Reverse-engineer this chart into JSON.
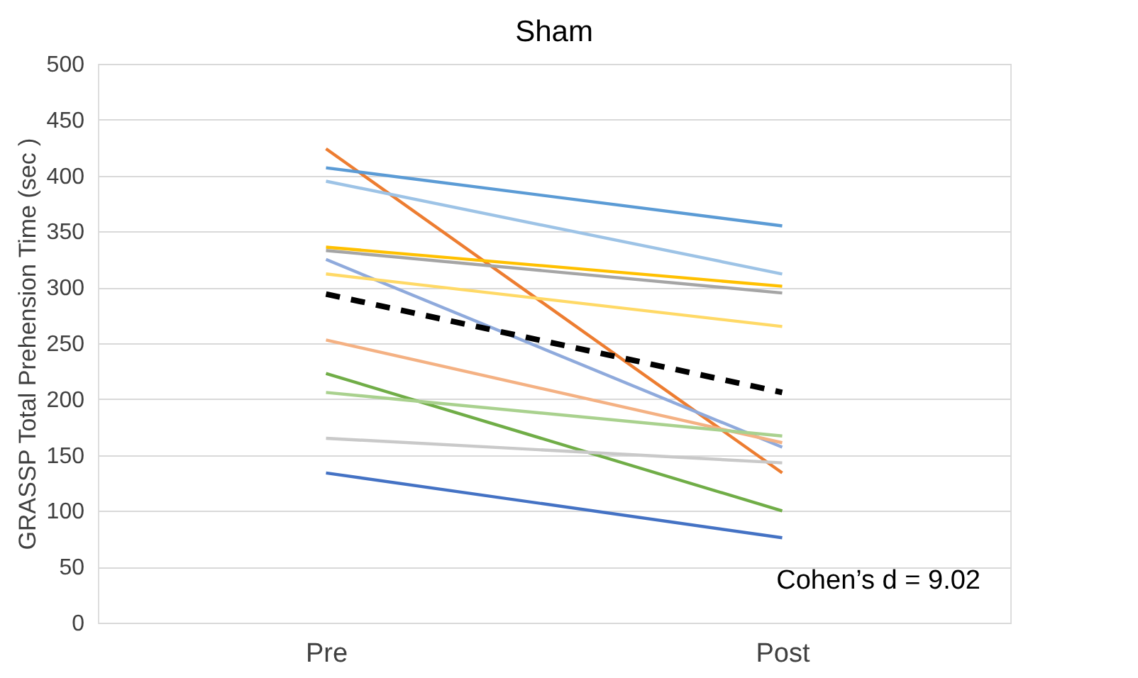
{
  "chart_data": {
    "type": "line",
    "title": "Sham",
    "ylabel": "GRASSP Total Prehension Time (sec )",
    "categories": [
      "Pre",
      "Post"
    ],
    "ylim": [
      0,
      500
    ],
    "yticks": [
      0,
      50,
      100,
      150,
      200,
      250,
      300,
      350,
      400,
      450,
      500
    ],
    "grid": "y",
    "marker": "none",
    "series": [
      {
        "color": "#ed7d31",
        "values": [
          424,
          134
        ]
      },
      {
        "color": "#5b9bd5",
        "values": [
          407,
          355
        ]
      },
      {
        "color": "#9dc3e6",
        "values": [
          395,
          312
        ]
      },
      {
        "color": "#ffc000",
        "values": [
          336,
          301
        ]
      },
      {
        "color": "#a5a5a5",
        "values": [
          333,
          295
        ]
      },
      {
        "color": "#8faadc",
        "values": [
          325,
          157
        ]
      },
      {
        "color": "#ffd966",
        "values": [
          312,
          265
        ]
      },
      {
        "color": "#f4b183",
        "values": [
          253,
          161
        ]
      },
      {
        "color": "#70ad47",
        "values": [
          223,
          100
        ]
      },
      {
        "color": "#a9d18e",
        "values": [
          206,
          167
        ]
      },
      {
        "color": "#c9c9c9",
        "values": [
          165,
          143
        ]
      },
      {
        "color": "#4472c4",
        "values": [
          134,
          76
        ]
      },
      {
        "color": "#000000",
        "values": [
          294,
          206
        ],
        "line_style": "dashed"
      }
    ],
    "annotations": [
      "Cohen’s d = 9.02"
    ]
  }
}
